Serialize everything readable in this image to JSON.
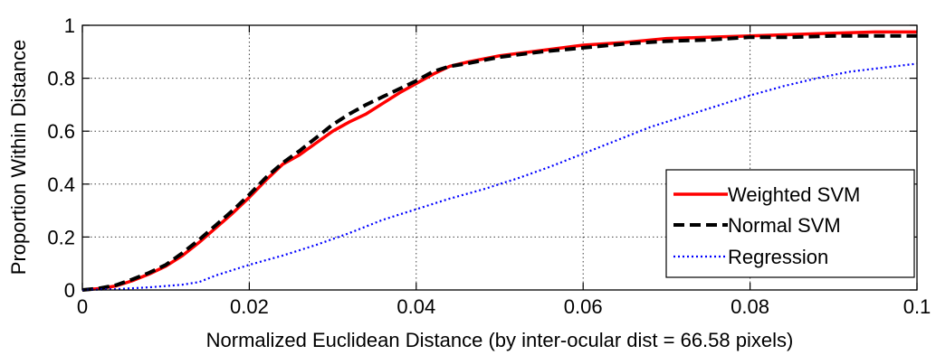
{
  "chart_data": {
    "type": "line",
    "xlabel": "Normalized Euclidean Distance (by inter-ocular dist = 66.58 pixels)",
    "ylabel": "Proportion Within Distance",
    "xlim": [
      0,
      0.1
    ],
    "ylim": [
      0,
      1
    ],
    "xticks": [
      0,
      0.02,
      0.04,
      0.06,
      0.08,
      0.1
    ],
    "xtick_labels": [
      "0",
      "0.02",
      "0.04",
      "0.06",
      "0.08",
      "0.1"
    ],
    "yticks": [
      0,
      0.2,
      0.4,
      0.6,
      0.8,
      1
    ],
    "ytick_labels": [
      "0",
      "0.2",
      "0.4",
      "0.6",
      "0.8",
      "1"
    ],
    "grid": true,
    "legend_position": "bottom-right",
    "series": [
      {
        "name": "Weighted SVM",
        "color": "#ff0000",
        "style": "solid",
        "x": [
          0,
          0.002,
          0.004,
          0.006,
          0.008,
          0.01,
          0.012,
          0.014,
          0.016,
          0.018,
          0.02,
          0.022,
          0.024,
          0.026,
          0.028,
          0.03,
          0.032,
          0.034,
          0.036,
          0.038,
          0.04,
          0.042,
          0.044,
          0.046,
          0.05,
          0.055,
          0.06,
          0.065,
          0.07,
          0.075,
          0.08,
          0.085,
          0.09,
          0.095,
          0.1
        ],
        "y": [
          0,
          0.005,
          0.015,
          0.035,
          0.06,
          0.09,
          0.13,
          0.18,
          0.235,
          0.29,
          0.35,
          0.415,
          0.475,
          0.51,
          0.555,
          0.6,
          0.635,
          0.665,
          0.705,
          0.745,
          0.78,
          0.815,
          0.845,
          0.86,
          0.885,
          0.905,
          0.925,
          0.935,
          0.95,
          0.955,
          0.96,
          0.965,
          0.97,
          0.975,
          0.975
        ]
      },
      {
        "name": "Normal SVM",
        "color": "#000000",
        "style": "dashed",
        "x": [
          0,
          0.002,
          0.004,
          0.006,
          0.008,
          0.01,
          0.012,
          0.014,
          0.016,
          0.018,
          0.02,
          0.022,
          0.024,
          0.026,
          0.028,
          0.03,
          0.032,
          0.034,
          0.036,
          0.038,
          0.04,
          0.042,
          0.044,
          0.046,
          0.05,
          0.055,
          0.06,
          0.065,
          0.07,
          0.075,
          0.08,
          0.085,
          0.09,
          0.095,
          0.1
        ],
        "y": [
          0,
          0.006,
          0.018,
          0.04,
          0.065,
          0.095,
          0.14,
          0.19,
          0.245,
          0.3,
          0.36,
          0.425,
          0.48,
          0.525,
          0.575,
          0.625,
          0.665,
          0.7,
          0.73,
          0.76,
          0.79,
          0.825,
          0.845,
          0.855,
          0.88,
          0.9,
          0.915,
          0.93,
          0.94,
          0.945,
          0.955,
          0.955,
          0.96,
          0.96,
          0.96
        ]
      },
      {
        "name": "Regression",
        "color": "#0000ff",
        "style": "dotted",
        "x": [
          0,
          0.004,
          0.008,
          0.012,
          0.014,
          0.016,
          0.018,
          0.02,
          0.024,
          0.028,
          0.032,
          0.036,
          0.04,
          0.044,
          0.048,
          0.052,
          0.056,
          0.06,
          0.064,
          0.068,
          0.072,
          0.076,
          0.08,
          0.084,
          0.088,
          0.092,
          0.096,
          0.1
        ],
        "y": [
          0,
          0.003,
          0.01,
          0.02,
          0.03,
          0.055,
          0.075,
          0.095,
          0.13,
          0.17,
          0.215,
          0.265,
          0.305,
          0.345,
          0.38,
          0.42,
          0.465,
          0.515,
          0.565,
          0.615,
          0.655,
          0.695,
          0.735,
          0.77,
          0.8,
          0.825,
          0.84,
          0.855
        ]
      }
    ]
  }
}
